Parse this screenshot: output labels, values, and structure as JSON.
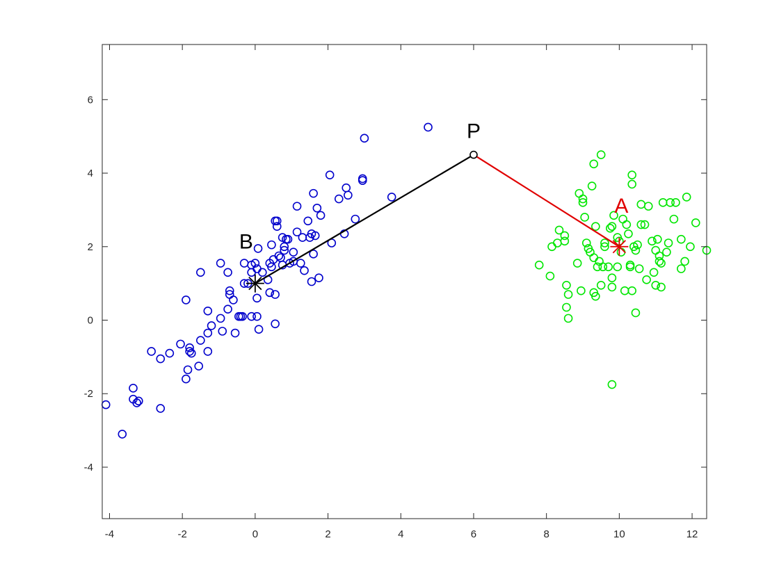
{
  "chart_data": {
    "type": "scatter",
    "title": "",
    "xlabel": "",
    "ylabel": "",
    "xlim": [
      -4.2,
      12.4
    ],
    "ylim": [
      -5.4,
      7.5
    ],
    "xticks": [
      -4,
      -2,
      0,
      2,
      4,
      6,
      8,
      10,
      12
    ],
    "yticks": [
      -4,
      -2,
      0,
      2,
      4,
      6
    ],
    "grid": false,
    "legend": "none",
    "colors": {
      "cluster_b": "#0000cc",
      "cluster_a": "#00e600",
      "line_pb": "#000000",
      "line_pa": "#e00000",
      "label_b": "#000000",
      "label_a": "#e00000",
      "label_p": "#000000"
    },
    "series": [
      {
        "key": "cluster_b",
        "marker": "circle",
        "points": [
          [
            -4.1,
            -2.3
          ],
          [
            -3.65,
            -3.1
          ],
          [
            -3.35,
            -1.85
          ],
          [
            -3.35,
            -2.15
          ],
          [
            -3.25,
            -2.25
          ],
          [
            -3.2,
            -2.2
          ],
          [
            -2.85,
            -0.85
          ],
          [
            -2.6,
            -1.05
          ],
          [
            -2.6,
            -2.4
          ],
          [
            -2.35,
            -0.9
          ],
          [
            -2.05,
            -0.65
          ],
          [
            -1.9,
            -1.6
          ],
          [
            -1.9,
            0.55
          ],
          [
            -1.85,
            -1.35
          ],
          [
            -1.8,
            -0.85
          ],
          [
            -1.8,
            -0.75
          ],
          [
            -1.75,
            -0.9
          ],
          [
            -1.55,
            -1.25
          ],
          [
            -1.5,
            -0.55
          ],
          [
            -1.5,
            1.3
          ],
          [
            -1.3,
            -0.35
          ],
          [
            -1.3,
            -0.85
          ],
          [
            -1.3,
            0.25
          ],
          [
            -1.2,
            -0.15
          ],
          [
            -0.95,
            0.05
          ],
          [
            -0.95,
            1.55
          ],
          [
            -0.9,
            -0.3
          ],
          [
            -0.75,
            0.3
          ],
          [
            -0.75,
            1.3
          ],
          [
            -0.7,
            0.8
          ],
          [
            -0.7,
            0.7
          ],
          [
            -0.6,
            0.55
          ],
          [
            -0.55,
            -0.35
          ],
          [
            -0.45,
            0.1
          ],
          [
            -0.4,
            0.1
          ],
          [
            -0.35,
            0.1
          ],
          [
            -0.3,
            1.0
          ],
          [
            -0.3,
            1.55
          ],
          [
            -0.2,
            1.0
          ],
          [
            -0.1,
            0.1
          ],
          [
            -0.1,
            1.5
          ],
          [
            -0.1,
            1.3
          ],
          [
            0.0,
            1.55
          ],
          [
            0.05,
            1.4
          ],
          [
            0.05,
            0.6
          ],
          [
            0.05,
            0.1
          ],
          [
            0.08,
            1.95
          ],
          [
            0.1,
            -0.25
          ],
          [
            0.2,
            1.3
          ],
          [
            0.35,
            1.1
          ],
          [
            0.4,
            1.55
          ],
          [
            0.4,
            0.75
          ],
          [
            0.45,
            1.45
          ],
          [
            0.45,
            2.05
          ],
          [
            0.5,
            1.65
          ],
          [
            0.55,
            0.7
          ],
          [
            0.55,
            -0.1
          ],
          [
            0.55,
            2.7
          ],
          [
            0.6,
            2.55
          ],
          [
            0.6,
            2.7
          ],
          [
            0.65,
            1.75
          ],
          [
            0.7,
            1.7
          ],
          [
            0.75,
            2.25
          ],
          [
            0.75,
            1.5
          ],
          [
            0.8,
            2.0
          ],
          [
            0.8,
            1.9
          ],
          [
            0.85,
            2.2
          ],
          [
            0.9,
            2.2
          ],
          [
            0.95,
            1.55
          ],
          [
            1.05,
            1.6
          ],
          [
            1.05,
            1.85
          ],
          [
            1.15,
            3.1
          ],
          [
            1.15,
            2.4
          ],
          [
            1.25,
            1.55
          ],
          [
            1.3,
            2.25
          ],
          [
            1.35,
            1.35
          ],
          [
            1.45,
            2.7
          ],
          [
            1.5,
            2.25
          ],
          [
            1.55,
            1.05
          ],
          [
            1.55,
            2.35
          ],
          [
            1.6,
            3.45
          ],
          [
            1.6,
            1.8
          ],
          [
            1.65,
            2.3
          ],
          [
            1.7,
            3.05
          ],
          [
            1.75,
            1.15
          ],
          [
            1.8,
            2.85
          ],
          [
            2.05,
            3.95
          ],
          [
            2.1,
            2.1
          ],
          [
            2.3,
            3.3
          ],
          [
            2.45,
            2.35
          ],
          [
            2.5,
            3.6
          ],
          [
            2.55,
            3.4
          ],
          [
            2.75,
            2.75
          ],
          [
            2.95,
            3.85
          ],
          [
            2.95,
            3.8
          ],
          [
            3.0,
            4.95
          ],
          [
            3.75,
            3.35
          ],
          [
            4.75,
            5.25
          ]
        ]
      },
      {
        "key": "cluster_a",
        "marker": "circle",
        "points": [
          [
            7.8,
            1.5
          ],
          [
            8.1,
            1.2
          ],
          [
            8.15,
            2.0
          ],
          [
            8.3,
            2.1
          ],
          [
            8.35,
            2.45
          ],
          [
            8.5,
            2.3
          ],
          [
            8.5,
            2.15
          ],
          [
            8.55,
            0.95
          ],
          [
            8.55,
            0.35
          ],
          [
            8.6,
            0.05
          ],
          [
            8.6,
            0.7
          ],
          [
            8.85,
            1.55
          ],
          [
            8.9,
            3.45
          ],
          [
            8.95,
            0.8
          ],
          [
            9.0,
            3.2
          ],
          [
            9.0,
            3.3
          ],
          [
            9.05,
            2.8
          ],
          [
            9.1,
            2.1
          ],
          [
            9.15,
            1.95
          ],
          [
            9.2,
            1.85
          ],
          [
            9.25,
            3.65
          ],
          [
            9.3,
            1.7
          ],
          [
            9.3,
            0.75
          ],
          [
            9.3,
            4.25
          ],
          [
            9.35,
            0.65
          ],
          [
            9.35,
            2.55
          ],
          [
            9.4,
            1.45
          ],
          [
            9.45,
            1.6
          ],
          [
            9.5,
            4.5
          ],
          [
            9.5,
            0.95
          ],
          [
            9.55,
            1.45
          ],
          [
            9.6,
            2.0
          ],
          [
            9.6,
            2.1
          ],
          [
            9.7,
            1.45
          ],
          [
            9.75,
            2.5
          ],
          [
            9.8,
            0.9
          ],
          [
            9.8,
            1.15
          ],
          [
            9.8,
            2.55
          ],
          [
            9.85,
            2.85
          ],
          [
            9.8,
            -1.75
          ],
          [
            9.95,
            1.45
          ],
          [
            9.95,
            2.25
          ],
          [
            10.0,
            2.15
          ],
          [
            10.05,
            1.85
          ],
          [
            10.1,
            2.75
          ],
          [
            10.15,
            0.8
          ],
          [
            10.2,
            2.6
          ],
          [
            10.25,
            2.35
          ],
          [
            10.3,
            1.45
          ],
          [
            10.3,
            1.5
          ],
          [
            10.35,
            3.95
          ],
          [
            10.35,
            3.7
          ],
          [
            10.35,
            0.8
          ],
          [
            10.4,
            2.0
          ],
          [
            10.45,
            1.9
          ],
          [
            10.45,
            0.2
          ],
          [
            10.5,
            2.05
          ],
          [
            10.55,
            1.4
          ],
          [
            10.6,
            2.6
          ],
          [
            10.6,
            3.15
          ],
          [
            10.7,
            2.6
          ],
          [
            10.75,
            1.1
          ],
          [
            10.8,
            3.1
          ],
          [
            10.9,
            2.15
          ],
          [
            10.95,
            1.3
          ],
          [
            11.0,
            0.95
          ],
          [
            11.0,
            1.9
          ],
          [
            11.05,
            2.2
          ],
          [
            11.1,
            1.6
          ],
          [
            11.1,
            1.75
          ],
          [
            11.15,
            1.55
          ],
          [
            11.15,
            0.9
          ],
          [
            11.2,
            3.2
          ],
          [
            11.3,
            1.85
          ],
          [
            11.35,
            2.1
          ],
          [
            11.4,
            3.2
          ],
          [
            11.5,
            2.75
          ],
          [
            11.55,
            3.2
          ],
          [
            11.7,
            1.4
          ],
          [
            11.7,
            2.2
          ],
          [
            11.8,
            1.6
          ],
          [
            11.85,
            3.35
          ],
          [
            11.95,
            2.0
          ],
          [
            12.1,
            2.65
          ],
          [
            12.4,
            1.9
          ]
        ]
      }
    ],
    "annotations": [
      {
        "key": "label_p",
        "text": "P",
        "x": 6,
        "y": 4.5,
        "marker": "circle"
      },
      {
        "key": "label_a",
        "text": "A",
        "x": 10,
        "y": 2,
        "marker": "star"
      },
      {
        "key": "label_b",
        "text": "B",
        "x": 0,
        "y": 1,
        "marker": "star"
      }
    ],
    "segments": [
      {
        "key": "line_pb",
        "from": [
          6,
          4.5
        ],
        "to": [
          0,
          1
        ]
      },
      {
        "key": "line_pa",
        "from": [
          6,
          4.5
        ],
        "to": [
          10,
          2
        ]
      }
    ]
  }
}
